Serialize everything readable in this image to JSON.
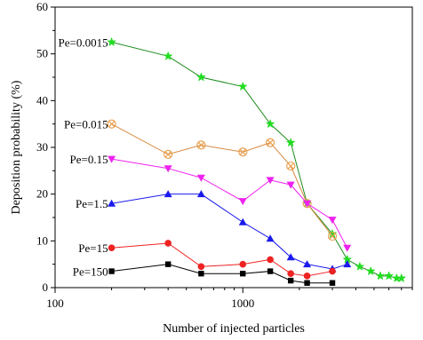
{
  "chart_data": {
    "type": "line",
    "xlabel": "Number of injected particles",
    "ylabel": "Deposition probability (%)",
    "xscale": "log",
    "xlim": [
      100,
      8000
    ],
    "ylim": [
      0,
      60
    ],
    "xticks": [
      100,
      1000
    ],
    "xtick_labels": [
      "100",
      "1000"
    ],
    "yticks": [
      0,
      10,
      20,
      30,
      40,
      50,
      60
    ],
    "ytick_labels": [
      "0",
      "10",
      "20",
      "30",
      "40",
      "50",
      "60"
    ],
    "grid": false,
    "legend": "labels beside each series at left",
    "series": [
      {
        "name": "Pe=0.0015",
        "color": "#1a8a1a",
        "marker_color": "#22dd22",
        "marker": "star",
        "x": [
          200,
          400,
          600,
          1000,
          1400,
          1800,
          2200,
          3000,
          3600,
          4200,
          4800,
          5400,
          6000,
          6600,
          7000
        ],
        "y": [
          52.5,
          49.5,
          45.0,
          43.0,
          35.0,
          31.0,
          18.0,
          11.5,
          6.0,
          4.5,
          3.5,
          2.5,
          2.5,
          2.0,
          2.0
        ]
      },
      {
        "name": "Pe=0.015",
        "color": "#d88a40",
        "marker_color": "#e8a050",
        "marker": "circle-x",
        "x": [
          200,
          400,
          600,
          1000,
          1400,
          1800,
          2200,
          3000
        ],
        "y": [
          35.0,
          28.5,
          30.5,
          29.0,
          31.0,
          26.0,
          18.0,
          11.0
        ]
      },
      {
        "name": "Pe=0.15",
        "color": "#ee22ee",
        "marker_color": "#ee22ee",
        "marker": "triangle-down",
        "x": [
          200,
          400,
          600,
          1000,
          1400,
          1800,
          2200,
          3000,
          3600
        ],
        "y": [
          27.5,
          25.5,
          23.5,
          18.5,
          23.0,
          22.0,
          18.0,
          14.5,
          8.5
        ]
      },
      {
        "name": "Pe=1.5",
        "color": "#1a1aee",
        "marker_color": "#1a1aee",
        "marker": "triangle-up",
        "x": [
          200,
          400,
          600,
          1000,
          1400,
          1800,
          2200,
          3000,
          3600
        ],
        "y": [
          18.0,
          20.0,
          20.0,
          14.0,
          10.5,
          6.5,
          5.0,
          4.0,
          5.0
        ]
      },
      {
        "name": "Pe=15",
        "color": "#ee2222",
        "marker_color": "#ee2222",
        "marker": "circle",
        "x": [
          200,
          400,
          600,
          1000,
          1400,
          1800,
          2200,
          3000
        ],
        "y": [
          8.5,
          9.5,
          4.5,
          5.0,
          6.0,
          3.0,
          2.5,
          3.5
        ]
      },
      {
        "name": "Pe=150",
        "color": "#000000",
        "marker_color": "#000000",
        "marker": "square",
        "x": [
          200,
          400,
          600,
          1000,
          1400,
          1800,
          2200,
          3000
        ],
        "y": [
          3.5,
          5.0,
          3.0,
          3.0,
          3.5,
          1.5,
          1.0,
          1.0
        ]
      }
    ]
  }
}
